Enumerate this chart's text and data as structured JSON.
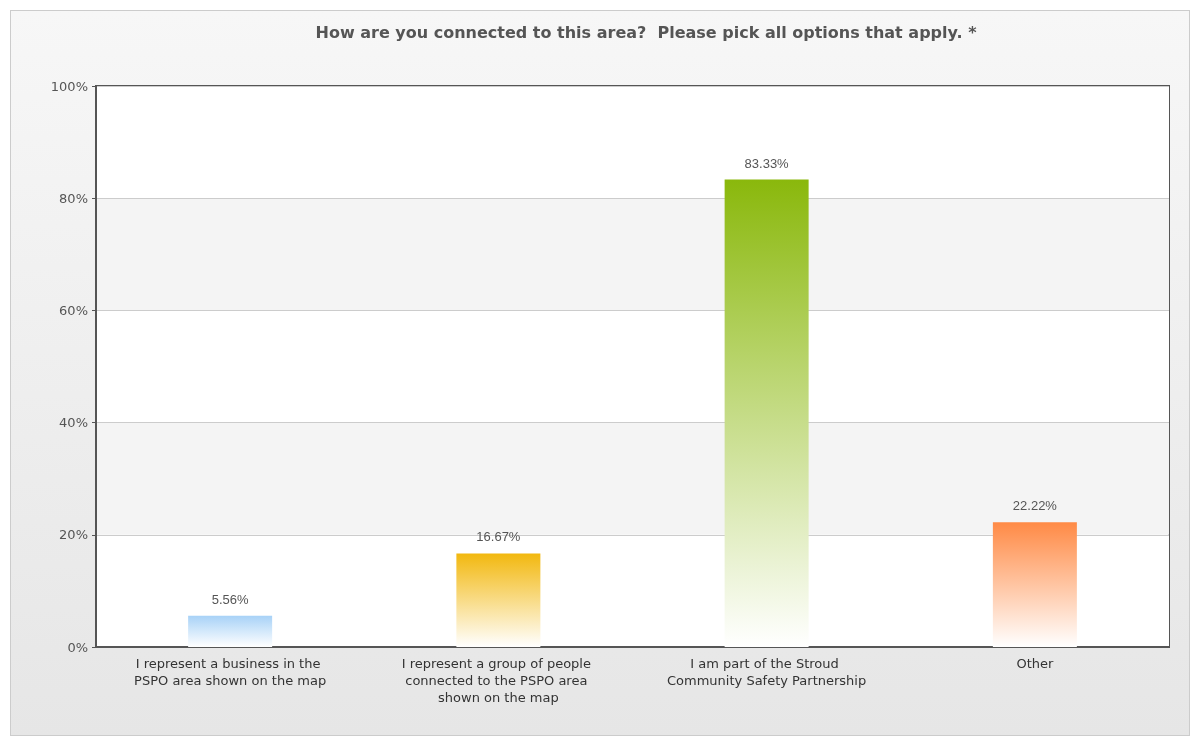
{
  "chart_data": {
    "type": "bar",
    "title": "How are you connected to this area?  Please pick all options that apply. *",
    "categories": [
      "I represent a business in the PSPO area shown on the map",
      "I represent a group of people connected to the PSPO area shown on the map",
      "I am part of the Stroud Community Safety Partnership",
      "Other"
    ],
    "values": [
      5.56,
      16.67,
      83.33,
      22.22
    ],
    "colors": [
      "#a8d2f7",
      "#f2b80f",
      "#8ab80c",
      "#ff8a45"
    ],
    "value_labels": [
      "5.56%",
      "16.67%",
      "83.33%",
      "22.22%"
    ],
    "ylim": [
      0,
      100
    ],
    "yticks": [
      {
        "value": 0,
        "label": "0%"
      },
      {
        "value": 20,
        "label": "20%"
      },
      {
        "value": 40,
        "label": "40%"
      },
      {
        "value": 60,
        "label": "60%"
      },
      {
        "value": 80,
        "label": "80%"
      },
      {
        "value": 100,
        "label": "100%"
      }
    ],
    "grid": "y"
  }
}
